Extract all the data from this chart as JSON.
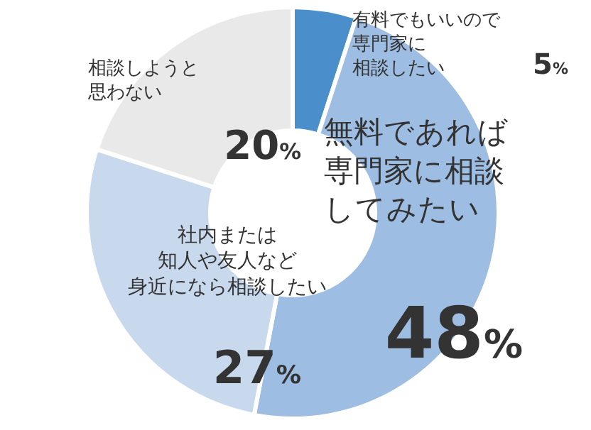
{
  "chart_data": {
    "type": "donut",
    "categories": [
      "有料でもいいので専門家に相談したい",
      "無料であれば専門家に相談してみたい",
      "社内または知人や友人など身近になら相談したい",
      "相談しようと思わない"
    ],
    "values": [
      5,
      48,
      27,
      20
    ],
    "colors": [
      "#4a8fcb",
      "#9dbde2",
      "#c8d9ee",
      "#e9e9e9"
    ],
    "value_labels": [
      "5%",
      "48%",
      "27%",
      "20%"
    ],
    "legend": false
  }
}
